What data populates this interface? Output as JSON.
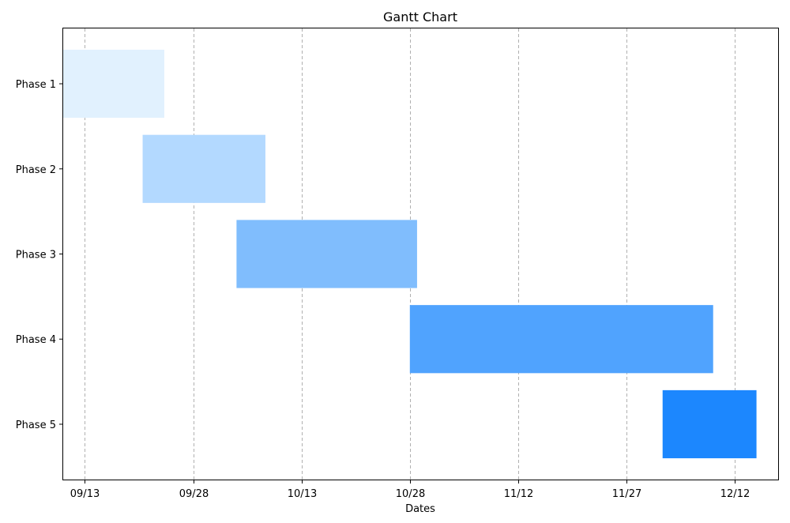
{
  "chart_data": {
    "type": "bar",
    "orientation": "horizontal",
    "title": "Gantt Chart",
    "xlabel": "Dates",
    "ylabel": "",
    "grid": {
      "x": true,
      "y": false,
      "style": "dashed"
    },
    "x_tick_labels": [
      "09/13",
      "09/28",
      "10/13",
      "10/28",
      "11/12",
      "11/27",
      "12/12"
    ],
    "x_tick_dates": [
      "09/13",
      "09/28",
      "10/13",
      "10/28",
      "11/12",
      "11/27",
      "12/12"
    ],
    "xlim": [
      "09/10",
      "12/18"
    ],
    "categories": [
      "Phase 1",
      "Phase 2",
      "Phase 3",
      "Phase 4",
      "Phase 5"
    ],
    "tasks": [
      {
        "name": "Phase 1",
        "start": "09/10",
        "end": "09/24",
        "color": "#e1f1fe"
      },
      {
        "name": "Phase 2",
        "start": "09/21",
        "end": "10/08",
        "color": "#b3d9ff"
      },
      {
        "name": "Phase 3",
        "start": "10/04",
        "end": "10/29",
        "color": "#80bdfd"
      },
      {
        "name": "Phase 4",
        "start": "10/28",
        "end": "12/09",
        "color": "#50a3fe"
      },
      {
        "name": "Phase 5",
        "start": "12/02",
        "end": "12/15",
        "color": "#1c87fe"
      }
    ]
  }
}
